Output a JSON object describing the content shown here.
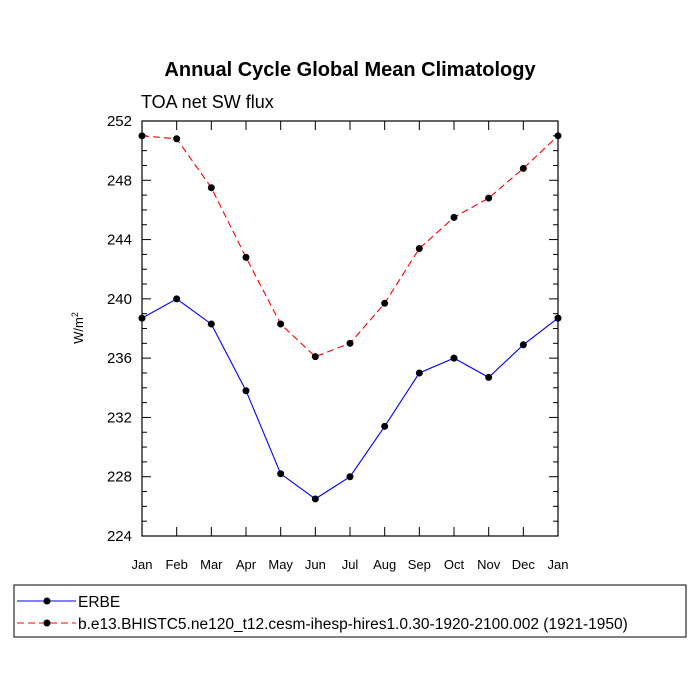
{
  "chart_data": {
    "type": "line",
    "title": "Annual Cycle Global Mean Climatology",
    "subtitle": "TOA net SW flux",
    "ylabel": "W/m",
    "ylabel_superscript": "2",
    "xlabel": "",
    "categories": [
      "Jan",
      "Feb",
      "Mar",
      "Apr",
      "May",
      "Jun",
      "Jul",
      "Aug",
      "Sep",
      "Oct",
      "Nov",
      "Dec",
      "Jan"
    ],
    "ylim": [
      224,
      252
    ],
    "y_ticks": [
      "224",
      "228",
      "232",
      "236",
      "240",
      "244",
      "248",
      "252"
    ],
    "grid": false,
    "legend_position": "bottom",
    "series": [
      {
        "name": "ERBE",
        "color": "#0000ff",
        "dash": "solid",
        "marker": "filled-circle",
        "values": [
          238.7,
          240.0,
          238.3,
          233.8,
          228.2,
          226.5,
          228.0,
          231.4,
          235.0,
          236.0,
          234.7,
          236.9,
          238.7
        ]
      },
      {
        "name": "b.e13.BHISTC5.ne120_t12.cesm-ihesp-hires1.0.30-1920-2100.002 (1921-1950)",
        "color": "#ff0000",
        "dash": "dashed",
        "marker": "filled-circle",
        "values": [
          251.0,
          250.8,
          247.5,
          242.8,
          238.3,
          236.1,
          237.0,
          239.7,
          243.4,
          245.5,
          246.8,
          248.8,
          251.0
        ]
      }
    ]
  }
}
